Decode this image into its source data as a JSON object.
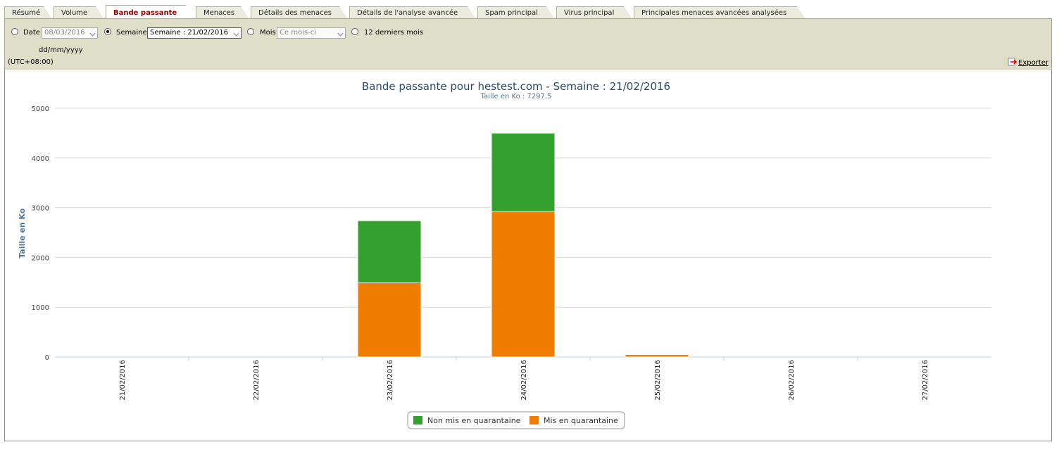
{
  "tabs": [
    {
      "label": "Résumé",
      "active": false
    },
    {
      "label": "Volume",
      "active": false
    },
    {
      "label": "Bande passante",
      "active": true
    },
    {
      "label": "Menaces",
      "active": false
    },
    {
      "label": "Détails des menaces",
      "active": false
    },
    {
      "label": "Détails de l'analyse avancée",
      "active": false
    },
    {
      "label": "Spam principal",
      "active": false
    },
    {
      "label": "Virus principal",
      "active": false
    },
    {
      "label": "Principales menaces avancées analysées",
      "active": false
    }
  ],
  "filters": {
    "date_label": "Date",
    "date_value": "08/03/2016",
    "date_format": "dd/mm/yyyy",
    "week_label": "Semaine",
    "week_value": "Semaine : 21/02/2016",
    "month_label": "Mois",
    "month_value": "Ce mois-ci",
    "last12_label": "12 derniers mois",
    "selected": "week",
    "timezone": "(UTC+08:00)",
    "export_label": "Exporter"
  },
  "chart_data": {
    "type": "bar",
    "stacked": true,
    "title": "Bande passante pour hestest.com - Semaine : 21/02/2016",
    "subtitle": "Taille en Ko : 7297.5",
    "xlabel": "",
    "ylabel": "Taille en Ko",
    "ylim": [
      0,
      5000
    ],
    "yticks": [
      0,
      1000,
      2000,
      3000,
      4000,
      5000
    ],
    "grid": true,
    "legend_position": "bottom-center",
    "categories": [
      "21/02/2016",
      "22/02/2016",
      "23/02/2016",
      "24/02/2016",
      "25/02/2016",
      "26/02/2016",
      "27/02/2016"
    ],
    "series": [
      {
        "name": "Mis en quarantaine",
        "color": "#f07c00",
        "values": [
          0,
          0,
          1490,
          2920,
          50,
          0,
          0
        ]
      },
      {
        "name": "Non mis en quarantaine",
        "color": "#34a02e",
        "values": [
          0,
          0,
          1250,
          1580,
          0,
          0,
          0
        ]
      }
    ],
    "legend_order": [
      "Non mis en quarantaine",
      "Mis en quarantaine"
    ]
  }
}
